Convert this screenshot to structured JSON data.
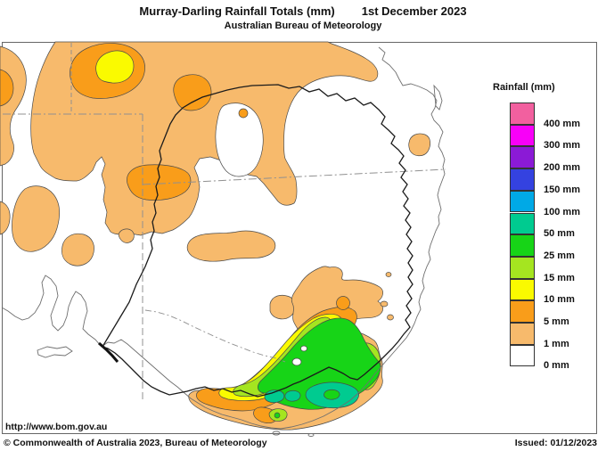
{
  "header": {
    "title": "Murray-Darling Rainfall Totals (mm)",
    "date": "1st December 2023",
    "subtitle": "Australian Bureau of Meteorology"
  },
  "legend": {
    "title": "Rainfall (mm)",
    "entries": [
      {
        "key": "400",
        "label": "400 mm",
        "color": "#F2609F"
      },
      {
        "key": "300",
        "label": "300 mm",
        "color": "#F800F8"
      },
      {
        "key": "200",
        "label": "200 mm",
        "color": "#8B1AD6"
      },
      {
        "key": "150",
        "label": "150 mm",
        "color": "#3442E0"
      },
      {
        "key": "100",
        "label": "100 mm",
        "color": "#00A9E6"
      },
      {
        "key": "50",
        "label": "50 mm",
        "color": "#00CB90"
      },
      {
        "key": "25",
        "label": "25 mm",
        "color": "#17D417"
      },
      {
        "key": "15",
        "label": "15 mm",
        "color": "#A5E520"
      },
      {
        "key": "10",
        "label": "10 mm",
        "color": "#FAFA00"
      },
      {
        "key": "5",
        "label": "5 mm",
        "color": "#F99D1A"
      },
      {
        "key": "1",
        "label": "1 mm",
        "color": "#F7BA6C"
      },
      {
        "key": "0",
        "label": "0 mm",
        "color": "#FFFFFF"
      }
    ]
  },
  "footer": {
    "url": "http://www.bom.gov.au",
    "copyright": "© Commonwealth of Australia 2023, Bureau of Meteorology",
    "issued": "Issued: 01/12/2023"
  }
}
